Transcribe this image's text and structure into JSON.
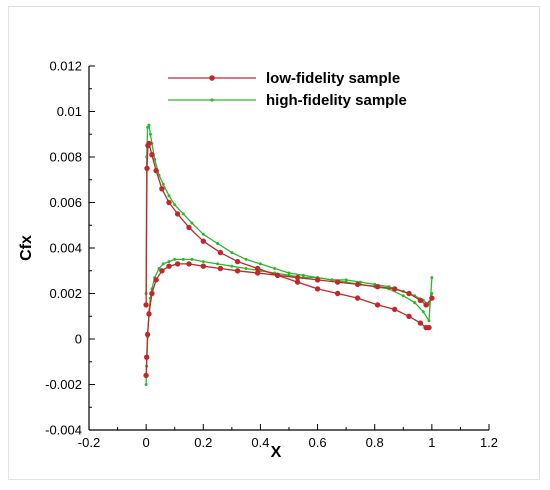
{
  "chart_data": {
    "type": "line",
    "title": "",
    "xlabel": "X",
    "ylabel": "Cfx",
    "xlim": [
      -0.2,
      1.2
    ],
    "ylim": [
      -0.004,
      0.012
    ],
    "x_ticks": [
      "-0.2",
      "0",
      "0.2",
      "0.4",
      "0.6",
      "0.8",
      "1",
      "1.2"
    ],
    "y_ticks": [
      "-0.004",
      "-0.002",
      "0",
      "0.002",
      "0.004",
      "0.006",
      "0.008",
      "0.01",
      "0.012"
    ],
    "legend_position": "top-center",
    "grid": false,
    "series": [
      {
        "name": "low-fidelity sample",
        "color": "#c0282d",
        "marker": "circle",
        "branches": [
          {
            "x": [
              0.0,
              0.003,
              0.006,
              0.01,
              0.02,
              0.035,
              0.055,
              0.08,
              0.11,
              0.15,
              0.2,
              0.26,
              0.32,
              0.39,
              0.46,
              0.53,
              0.6,
              0.67,
              0.74,
              0.81,
              0.87,
              0.92,
              0.96,
              0.98,
              0.99
            ],
            "y": [
              0.0015,
              0.0075,
              0.0085,
              0.0086,
              0.0081,
              0.0074,
              0.0066,
              0.006,
              0.0055,
              0.0049,
              0.0043,
              0.0038,
              0.0034,
              0.0031,
              0.0028,
              0.0025,
              0.0022,
              0.002,
              0.0018,
              0.0015,
              0.0013,
              0.001,
              0.0007,
              0.0005,
              0.0005
            ]
          },
          {
            "x": [
              0.0,
              0.002,
              0.005,
              0.01,
              0.02,
              0.035,
              0.055,
              0.08,
              0.11,
              0.15,
              0.2,
              0.26,
              0.32,
              0.39,
              0.46,
              0.53,
              0.6,
              0.67,
              0.74,
              0.81,
              0.87,
              0.92,
              0.96,
              0.98,
              1.0
            ],
            "y": [
              -0.0016,
              -0.0008,
              0.0002,
              0.0011,
              0.002,
              0.0026,
              0.003,
              0.0032,
              0.0033,
              0.0033,
              0.0032,
              0.0031,
              0.003,
              0.0029,
              0.0028,
              0.0027,
              0.0026,
              0.0025,
              0.0024,
              0.0023,
              0.0022,
              0.002,
              0.0017,
              0.0015,
              0.0018
            ]
          }
        ]
      },
      {
        "name": "high-fidelity sample",
        "color": "#2cb82c",
        "marker": "small-dot",
        "branches": [
          {
            "x": [
              0.0,
              0.002,
              0.005,
              0.01,
              0.015,
              0.02,
              0.03,
              0.045,
              0.06,
              0.08,
              0.1,
              0.13,
              0.16,
              0.2,
              0.25,
              0.3,
              0.35,
              0.4,
              0.45,
              0.5,
              0.55,
              0.6,
              0.65,
              0.7,
              0.75,
              0.8,
              0.85,
              0.9,
              0.94,
              0.97,
              0.99,
              1.0
            ],
            "y": [
              0.002,
              0.008,
              0.0093,
              0.0094,
              0.009,
              0.0086,
              0.0079,
              0.0072,
              0.0068,
              0.0063,
              0.0059,
              0.0055,
              0.0051,
              0.0046,
              0.0042,
              0.0038,
              0.0035,
              0.0033,
              0.0031,
              0.0029,
              0.0028,
              0.0027,
              0.0026,
              0.0025,
              0.0024,
              0.0023,
              0.0022,
              0.0019,
              0.0016,
              0.0012,
              0.0008,
              0.0027
            ]
          },
          {
            "x": [
              0.0,
              0.002,
              0.005,
              0.01,
              0.015,
              0.02,
              0.03,
              0.045,
              0.06,
              0.08,
              0.1,
              0.13,
              0.16,
              0.2,
              0.25,
              0.3,
              0.35,
              0.4,
              0.45,
              0.5,
              0.55,
              0.6,
              0.65,
              0.7,
              0.75,
              0.8,
              0.85,
              0.9,
              0.94,
              0.97,
              0.99,
              1.0
            ],
            "y": [
              -0.002,
              -0.0012,
              0.0001,
              0.0012,
              0.0018,
              0.0022,
              0.0027,
              0.0031,
              0.0033,
              0.0034,
              0.0035,
              0.0035,
              0.0035,
              0.0034,
              0.0033,
              0.0032,
              0.0031,
              0.003,
              0.0029,
              0.0028,
              0.0027,
              0.0027,
              0.0026,
              0.0026,
              0.0025,
              0.0024,
              0.0023,
              0.0021,
              0.0019,
              0.0017,
              0.0015,
              0.002
            ]
          }
        ]
      }
    ]
  }
}
